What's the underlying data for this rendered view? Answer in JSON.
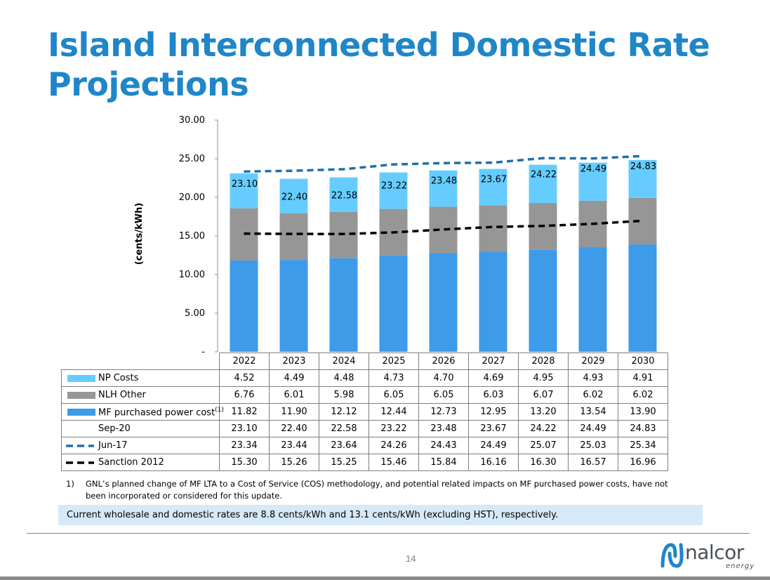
{
  "slide": {
    "title": "Island Interconnected Domestic Rate Projections",
    "footnote_number": "1)",
    "footnote_text": "GNL’s planned change of MF LTA to a Cost of Service (COS) methodology, and potential related impacts on MF purchased power costs, have not been incorporated or considered for this update.",
    "info_bar": "Current wholesale and domestic rates are 8.8 cents/kWh and 13.1 cents/kWh (excluding HST), respectively.",
    "page_number": "14",
    "logo_text": "nalcor",
    "logo_sub": "energy"
  },
  "chart_data": {
    "type": "bar",
    "stacked": true,
    "ylabel": "(cents/kWh)",
    "ylim": [
      0,
      30
    ],
    "yticks": [
      "-",
      "5.00",
      "10.00",
      "15.00",
      "20.00",
      "25.00",
      "30.00"
    ],
    "ytick_values": [
      0,
      5,
      10,
      15,
      20,
      25,
      30
    ],
    "categories": [
      "2022",
      "2023",
      "2024",
      "2025",
      "2026",
      "2027",
      "2028",
      "2029",
      "2030"
    ],
    "series": [
      {
        "name": "MF purchased power cost",
        "superscript": "(1)",
        "kind": "bar",
        "color": "#3d9be9",
        "values": [
          "11.82",
          "11.90",
          "12.12",
          "12.44",
          "12.73",
          "12.95",
          "13.20",
          "13.54",
          "13.90"
        ]
      },
      {
        "name": "NLH Other",
        "kind": "bar",
        "color": "#969696",
        "values": [
          "6.76",
          "6.01",
          "5.98",
          "6.05",
          "6.05",
          "6.03",
          "6.07",
          "6.02",
          "6.02"
        ]
      },
      {
        "name": "NP Costs",
        "kind": "bar",
        "color": "#66ccff",
        "values": [
          "4.52",
          "4.49",
          "4.48",
          "4.73",
          "4.70",
          "4.69",
          "4.95",
          "4.93",
          "4.91"
        ]
      },
      {
        "name": "Sep-20",
        "kind": "total",
        "values": [
          "23.10",
          "22.40",
          "22.58",
          "23.22",
          "23.48",
          "23.67",
          "24.22",
          "24.49",
          "24.83"
        ]
      },
      {
        "name": "Jun-17",
        "kind": "dashed-line",
        "color": "#1f6fa8",
        "values": [
          "23.34",
          "23.44",
          "23.64",
          "24.26",
          "24.43",
          "24.49",
          "25.07",
          "25.03",
          "25.34"
        ]
      },
      {
        "name": "Sanction 2012",
        "kind": "dashed-line",
        "color": "#000000",
        "values": [
          "15.30",
          "15.26",
          "15.25",
          "15.46",
          "15.84",
          "16.16",
          "16.30",
          "16.57",
          "16.96"
        ]
      }
    ],
    "table_row_order": [
      "NP Costs",
      "NLH Other",
      "MF purchased power cost",
      "Sep-20",
      "Jun-17",
      "Sanction 2012"
    ]
  }
}
